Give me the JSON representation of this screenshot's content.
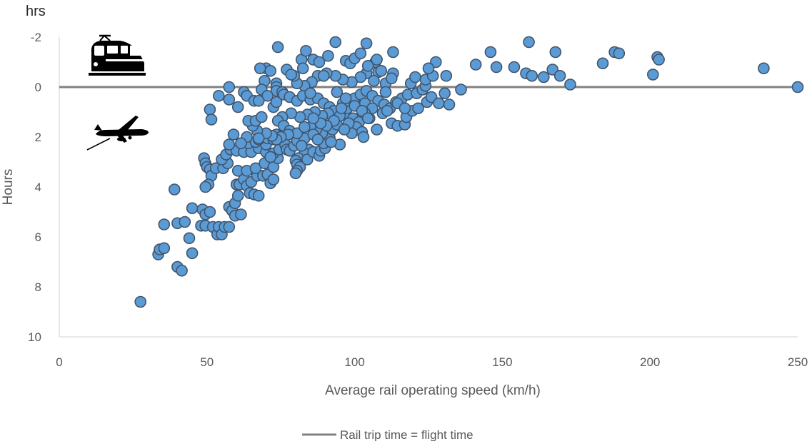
{
  "chart_data": {
    "type": "scatter",
    "unit_label": "hrs",
    "xlabel": "Average rail operating speed (km/h)",
    "ylabel": "Hours",
    "xlim": [
      0,
      250
    ],
    "ylim": [
      -2,
      10
    ],
    "y_inverted": true,
    "x_ticks": [
      "0",
      "50",
      "100",
      "150",
      "200",
      "250"
    ],
    "y_ticks": [
      "-2",
      "0",
      "2",
      "4",
      "6",
      "8",
      "10"
    ],
    "grid": false,
    "legend_position": "bottom-center",
    "reference_line": {
      "name": "Rail trip time = flight time",
      "y": 0,
      "color": "#808080"
    },
    "marker_color": "#5b9bd5",
    "marker_edge_color": "#41546b",
    "icons": [
      "train-icon",
      "airplane-icon"
    ],
    "points": [
      [
        27.5,
        8.6
      ],
      [
        33.5,
        6.7
      ],
      [
        34,
        6.5
      ],
      [
        35.5,
        6.45
      ],
      [
        35.5,
        5.5
      ],
      [
        39,
        4.1
      ],
      [
        40,
        5.45
      ],
      [
        40,
        7.2
      ],
      [
        41.5,
        7.35
      ],
      [
        42.5,
        5.4
      ],
      [
        44,
        6.05
      ],
      [
        45,
        6.65
      ],
      [
        45,
        4.85
      ],
      [
        48,
        5.55
      ],
      [
        48.5,
        4.9
      ],
      [
        49.5,
        5.1
      ],
      [
        49.5,
        5.55
      ],
      [
        51,
        5.0
      ],
      [
        52,
        5.6
      ],
      [
        53.5,
        5.9
      ],
      [
        54,
        5.6
      ],
      [
        55,
        5.9
      ],
      [
        56,
        5.6
      ],
      [
        57.5,
        5.6
      ],
      [
        57.5,
        4.8
      ],
      [
        58.5,
        4.95
      ],
      [
        59.5,
        5.15
      ],
      [
        59.5,
        4.65
      ],
      [
        60.5,
        4.35
      ],
      [
        61.5,
        5.1
      ],
      [
        60,
        3.9
      ],
      [
        61,
        3.9
      ],
      [
        62.5,
        3.7
      ],
      [
        63.5,
        3.95
      ],
      [
        64.5,
        4.25
      ],
      [
        66,
        4.3
      ],
      [
        67.5,
        4.35
      ],
      [
        65,
        3.8
      ],
      [
        67,
        3.55
      ],
      [
        69,
        3.55
      ],
      [
        70.5,
        3.5
      ],
      [
        71.5,
        3.85
      ],
      [
        72.5,
        3.7
      ],
      [
        60.5,
        3.35
      ],
      [
        63.5,
        3.35
      ],
      [
        66.5,
        3.25
      ],
      [
        69.5,
        3.05
      ],
      [
        72.5,
        3.2
      ],
      [
        74,
        2.85
      ],
      [
        49,
        2.85
      ],
      [
        49.5,
        3.05
      ],
      [
        50,
        3.2
      ],
      [
        51,
        3.3
      ],
      [
        51.5,
        3.55
      ],
      [
        50.5,
        3.9
      ],
      [
        49.5,
        4.0
      ],
      [
        53,
        3.25
      ],
      [
        55.5,
        3.25
      ],
      [
        57,
        3.05
      ],
      [
        55,
        2.9
      ],
      [
        56.5,
        2.7
      ],
      [
        58,
        2.5
      ],
      [
        60,
        2.55
      ],
      [
        62.5,
        2.6
      ],
      [
        65,
        2.6
      ],
      [
        67.5,
        2.45
      ],
      [
        70,
        2.6
      ],
      [
        72.5,
        2.65
      ],
      [
        74.5,
        2.5
      ],
      [
        71.5,
        2.8
      ],
      [
        70,
        2.3
      ],
      [
        64,
        2.25
      ],
      [
        66.5,
        2.2
      ],
      [
        63.5,
        2.0
      ],
      [
        67.5,
        2.1
      ],
      [
        70.5,
        2.05
      ],
      [
        73.5,
        1.9
      ],
      [
        72.5,
        2.1
      ],
      [
        75.5,
        1.95
      ],
      [
        76.5,
        2.3
      ],
      [
        77,
        2.5
      ],
      [
        78,
        2.55
      ],
      [
        79.5,
        2.35
      ],
      [
        80.5,
        2.15
      ],
      [
        81.5,
        1.85
      ],
      [
        83,
        2.05
      ],
      [
        84.5,
        2.5
      ],
      [
        83,
        2.65
      ],
      [
        81,
        2.85
      ],
      [
        80,
        2.95
      ],
      [
        80.5,
        3.1
      ],
      [
        81.5,
        3.2
      ],
      [
        80.5,
        3.35
      ],
      [
        80,
        3.45
      ],
      [
        84,
        2.9
      ],
      [
        86,
        2.6
      ],
      [
        88,
        2.75
      ],
      [
        88.5,
        2.55
      ],
      [
        90,
        2.45
      ],
      [
        89.5,
        2.25
      ],
      [
        91.5,
        2.0
      ],
      [
        89,
        1.85
      ],
      [
        87,
        1.7
      ],
      [
        85,
        1.6
      ],
      [
        86,
        1.9
      ],
      [
        87.5,
        2.1
      ],
      [
        92.5,
        1.7
      ],
      [
        94,
        1.5
      ],
      [
        92,
        1.3
      ],
      [
        95,
        1.15
      ],
      [
        97,
        1.05
      ],
      [
        99.5,
        1.25
      ],
      [
        101.5,
        1.4
      ],
      [
        100.5,
        1.6
      ],
      [
        102.5,
        1.8
      ],
      [
        103,
        2.0
      ],
      [
        99,
        1.85
      ],
      [
        95,
        2.3
      ],
      [
        97.5,
        0.85
      ],
      [
        96,
        0.65
      ],
      [
        98,
        0.55
      ],
      [
        100,
        0.45
      ],
      [
        102,
        0.3
      ],
      [
        104,
        0.15
      ],
      [
        106,
        0.35
      ],
      [
        108,
        0.55
      ],
      [
        110,
        0.7
      ],
      [
        112,
        0.85
      ],
      [
        114,
        0.6
      ],
      [
        116,
        0.45
      ],
      [
        118,
        0.3
      ],
      [
        112.5,
        1.45
      ],
      [
        114.5,
        1.55
      ],
      [
        117,
        1.5
      ],
      [
        117.5,
        1.2
      ],
      [
        119.5,
        0.95
      ],
      [
        121.5,
        0.85
      ],
      [
        124.5,
        0.6
      ],
      [
        126,
        0.4
      ],
      [
        128.5,
        0.65
      ],
      [
        130.5,
        0.25
      ],
      [
        132,
        0.7
      ],
      [
        136,
        0.1
      ],
      [
        121,
        0.25
      ],
      [
        123,
        0.1
      ],
      [
        124,
        -0.05
      ],
      [
        119,
        -0.15
      ],
      [
        120.5,
        -0.4
      ],
      [
        124,
        -0.3
      ],
      [
        126.5,
        -0.45
      ],
      [
        131,
        -0.45
      ],
      [
        127.5,
        -1.0
      ],
      [
        125,
        -0.75
      ],
      [
        113,
        -0.55
      ],
      [
        108,
        -0.6
      ],
      [
        104,
        -0.55
      ],
      [
        102,
        -0.4
      ],
      [
        106.5,
        -0.25
      ],
      [
        110.5,
        -0.15
      ],
      [
        112.5,
        -0.35
      ],
      [
        99,
        -0.2
      ],
      [
        96,
        -0.3
      ],
      [
        93.5,
        -0.45
      ],
      [
        90.5,
        -0.55
      ],
      [
        87.5,
        -0.45
      ],
      [
        85.5,
        -0.2
      ],
      [
        83,
        -0.05
      ],
      [
        80.5,
        -0.15
      ],
      [
        79.5,
        -0.45
      ],
      [
        77,
        -0.7
      ],
      [
        78.5,
        -0.5
      ],
      [
        82,
        -1.1
      ],
      [
        86,
        -1.1
      ],
      [
        88,
        -1.0
      ],
      [
        91,
        -1.25
      ],
      [
        97,
        -1.05
      ],
      [
        98.5,
        -0.95
      ],
      [
        100,
        -1.15
      ],
      [
        102,
        -1.35
      ],
      [
        107,
        -1.0
      ],
      [
        109,
        -0.65
      ],
      [
        83.5,
        -1.45
      ],
      [
        93.5,
        -1.8
      ],
      [
        104,
        -1.75
      ],
      [
        113,
        -1.4
      ],
      [
        74,
        -1.6
      ],
      [
        70,
        -0.75
      ],
      [
        71.5,
        -0.65
      ],
      [
        68,
        -0.75
      ],
      [
        69.5,
        -0.25
      ],
      [
        73.5,
        -0.15
      ],
      [
        68.5,
        0.1
      ],
      [
        73.5,
        0.0
      ],
      [
        73.5,
        0.15
      ],
      [
        75.5,
        0.2
      ],
      [
        70.5,
        0.35
      ],
      [
        62.5,
        0.2
      ],
      [
        63.5,
        0.35
      ],
      [
        54,
        0.35
      ],
      [
        57.5,
        0.5
      ],
      [
        57.5,
        0.0
      ],
      [
        51,
        0.9
      ],
      [
        51.5,
        1.3
      ],
      [
        60.5,
        0.8
      ],
      [
        66,
        0.55
      ],
      [
        67.5,
        0.55
      ],
      [
        72.5,
        0.8
      ],
      [
        73.5,
        0.6
      ],
      [
        76,
        0.3
      ],
      [
        78,
        0.4
      ],
      [
        80.5,
        0.55
      ],
      [
        82.5,
        0.35
      ],
      [
        85,
        0.5
      ],
      [
        87.5,
        0.45
      ],
      [
        89.5,
        0.65
      ],
      [
        91.5,
        0.8
      ],
      [
        93,
        0.95
      ],
      [
        91,
        1.05
      ],
      [
        89,
        1.15
      ],
      [
        86.5,
        1.0
      ],
      [
        84,
        1.1
      ],
      [
        81.5,
        1.2
      ],
      [
        78.5,
        1.05
      ],
      [
        75.5,
        1.2
      ],
      [
        74,
        1.35
      ],
      [
        76,
        1.55
      ],
      [
        78,
        1.75
      ],
      [
        80.5,
        1.85
      ],
      [
        77.5,
        1.9
      ],
      [
        75,
        2.0
      ],
      [
        73.5,
        2.1
      ],
      [
        72,
        1.95
      ],
      [
        70,
        1.85
      ],
      [
        67,
        1.75
      ],
      [
        65.5,
        1.55
      ],
      [
        64,
        1.35
      ],
      [
        66.5,
        1.35
      ],
      [
        68.5,
        1.2
      ],
      [
        67.5,
        2.05
      ],
      [
        59,
        1.9
      ],
      [
        61.5,
        2.25
      ],
      [
        57.5,
        2.3
      ],
      [
        85,
        0.25
      ],
      [
        94,
        0.2
      ],
      [
        97,
        0.45
      ],
      [
        103.5,
        0.65
      ],
      [
        106,
        0.85
      ],
      [
        109.5,
        1.05
      ],
      [
        111,
        0.95
      ],
      [
        105,
        1.25
      ],
      [
        107.5,
        1.7
      ],
      [
        103.5,
        1.05
      ],
      [
        98,
        1.45
      ],
      [
        95,
        1.15
      ],
      [
        93,
        1.35
      ],
      [
        90.5,
        1.55
      ],
      [
        88.5,
        1.45
      ],
      [
        86,
        1.25
      ],
      [
        95.5,
        0.85
      ],
      [
        96.5,
        1.7
      ],
      [
        100,
        0.75
      ],
      [
        102.5,
        0.95
      ],
      [
        104.5,
        1.25
      ],
      [
        110.5,
        0.2
      ],
      [
        114.5,
        0.65
      ],
      [
        117,
        0.85
      ],
      [
        83,
        1.6
      ],
      [
        82,
        2.35
      ],
      [
        92,
        2.2
      ],
      [
        82.5,
        -0.75
      ],
      [
        89.5,
        -0.45
      ],
      [
        104.5,
        -0.85
      ],
      [
        107.5,
        -1.1
      ],
      [
        146,
        -1.4
      ],
      [
        141,
        -0.9
      ],
      [
        148,
        -0.8
      ],
      [
        154,
        -0.8
      ],
      [
        158,
        -0.55
      ],
      [
        159,
        -1.8
      ],
      [
        160,
        -0.45
      ],
      [
        164,
        -0.4
      ],
      [
        167,
        -0.7
      ],
      [
        168,
        -1.4
      ],
      [
        169.5,
        -0.45
      ],
      [
        173,
        -0.1
      ],
      [
        184,
        -0.95
      ],
      [
        188,
        -1.4
      ],
      [
        189.5,
        -1.35
      ],
      [
        201,
        -0.5
      ],
      [
        202.5,
        -1.2
      ],
      [
        203,
        -1.1
      ],
      [
        238.5,
        -0.75
      ],
      [
        250,
        0.0
      ]
    ]
  }
}
